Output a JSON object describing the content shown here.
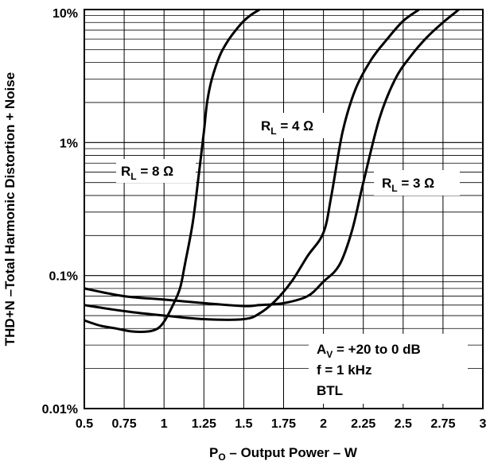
{
  "chart_data": {
    "type": "line",
    "xlabel_main": "P",
    "xlabel_sub": "O",
    "xlabel_rest": " – Output Power – W",
    "ylabel": "THD+N –Total Harmonic Distortion + Noise",
    "xlim": [
      0.5,
      3
    ],
    "ylim": [
      0.01,
      10
    ],
    "y_scale": "log",
    "grid": true,
    "x_ticks": [
      {
        "value": 0.5,
        "label": "0.5"
      },
      {
        "value": 0.75,
        "label": "0.75"
      },
      {
        "value": 1,
        "label": "1"
      },
      {
        "value": 1.25,
        "label": "1.25"
      },
      {
        "value": 1.5,
        "label": "1.5"
      },
      {
        "value": 1.75,
        "label": "1.75"
      },
      {
        "value": 2,
        "label": "2"
      },
      {
        "value": 2.25,
        "label": "2.25"
      },
      {
        "value": 2.5,
        "label": "2.5"
      },
      {
        "value": 2.75,
        "label": "2.75"
      },
      {
        "value": 3,
        "label": "3"
      }
    ],
    "y_ticks": [
      {
        "value": 10,
        "label": "10%"
      },
      {
        "value": 1,
        "label": "1%"
      },
      {
        "value": 0.1,
        "label": "0.1%"
      },
      {
        "value": 0.01,
        "label": "0.01%"
      }
    ],
    "series": [
      {
        "name_main": "R",
        "name_sub": "L",
        "name_rest": " = 8 Ω",
        "x": [
          0.5,
          0.6,
          0.7,
          0.8,
          0.9,
          0.96,
          1.0,
          1.05,
          1.1,
          1.13,
          1.18,
          1.22,
          1.25,
          1.27,
          1.3,
          1.35,
          1.4,
          1.45,
          1.5,
          1.55,
          1.6
        ],
        "y": [
          0.046,
          0.042,
          0.04,
          0.038,
          0.038,
          0.04,
          0.045,
          0.058,
          0.08,
          0.12,
          0.25,
          0.6,
          1.2,
          2.0,
          3.0,
          4.5,
          5.8,
          7.0,
          8.2,
          9.2,
          10
        ]
      },
      {
        "name_main": "R",
        "name_sub": "L",
        "name_rest": " = 4 Ω",
        "x": [
          0.5,
          0.75,
          1.0,
          1.25,
          1.5,
          1.6,
          1.7,
          1.8,
          1.9,
          2.0,
          2.05,
          2.12,
          2.2,
          2.3,
          2.4,
          2.5,
          2.6
        ],
        "y": [
          0.06,
          0.054,
          0.05,
          0.047,
          0.047,
          0.052,
          0.065,
          0.09,
          0.14,
          0.21,
          0.4,
          1.2,
          2.5,
          4.2,
          6.0,
          8.2,
          10
        ]
      },
      {
        "name_main": "R",
        "name_sub": "L",
        "name_rest": " = 3 Ω",
        "x": [
          0.5,
          0.75,
          1.0,
          1.25,
          1.5,
          1.6,
          1.75,
          1.9,
          2.0,
          2.1,
          2.18,
          2.25,
          2.35,
          2.45,
          2.55,
          2.65,
          2.75,
          2.85
        ],
        "y": [
          0.08,
          0.07,
          0.066,
          0.062,
          0.059,
          0.06,
          0.062,
          0.07,
          0.09,
          0.12,
          0.22,
          0.5,
          1.5,
          3.0,
          4.5,
          6.2,
          8.0,
          10
        ]
      }
    ],
    "conditions": [
      {
        "main": "A",
        "sub": "V",
        "rest": " = +20 to 0 dB"
      },
      {
        "main": "f = 1 kHz",
        "sub": "",
        "rest": ""
      },
      {
        "main": "BTL",
        "sub": "",
        "rest": ""
      }
    ]
  }
}
